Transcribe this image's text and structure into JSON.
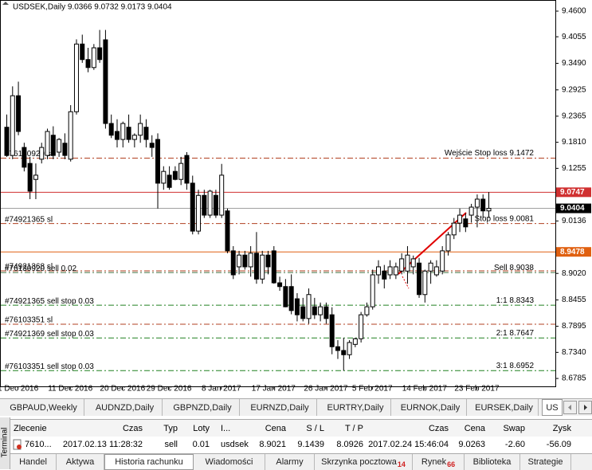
{
  "chart_data": {
    "type": "candlestick",
    "title": "USDSEK,Daily 9.0366 9.0732 9.0173 9.0404",
    "ylim": [
      8.6617,
      9.4837
    ],
    "yticks": [
      {
        "value": 9.46,
        "label": "9.4600"
      },
      9.4055,
      {
        "value": 9.349,
        "label": "9.3490"
      },
      9.2925,
      9.2365,
      {
        "value": 9.181,
        "label": "9.1810"
      },
      9.1255,
      9.0136,
      {
        "value": 8.902,
        "label": "8.9020"
      },
      8.8455,
      8.7895,
      {
        "value": 8.734,
        "label": "8.7340"
      },
      8.6785
    ],
    "xticks": [
      {
        "value": 2,
        "label": "1 Dec 2016"
      },
      {
        "value": 11,
        "label": "11 Dec 2016"
      },
      {
        "value": 20,
        "label": "20 Dec 2016"
      },
      {
        "value": 28,
        "label": "29 Dec 2016"
      },
      {
        "value": 37,
        "label": "8 Jan 2017"
      },
      {
        "value": 46,
        "label": "17 Jan 2017"
      },
      {
        "value": 55,
        "label": "26 Jan 2017"
      },
      {
        "value": 63,
        "label": "5 Feb 2017"
      },
      {
        "value": 72,
        "label": "14 Feb 2017"
      },
      {
        "value": 81,
        "label": "23 Feb 2017"
      }
    ],
    "up_color": "#ffffff",
    "down_color": "#000000",
    "candles": [
      [
        9.213,
        9.24,
        9.15,
        9.153
      ],
      [
        9.153,
        9.3,
        9.145,
        9.28
      ],
      [
        9.28,
        9.31,
        9.196,
        9.204
      ],
      [
        9.17,
        9.18,
        9.119,
        9.128
      ],
      [
        9.136,
        9.15,
        9.06,
        9.077
      ],
      [
        9.102,
        9.136,
        9.06,
        9.111
      ],
      [
        9.145,
        9.18,
        9.136,
        9.17
      ],
      [
        9.153,
        9.21,
        9.145,
        9.204
      ],
      [
        9.196,
        9.215,
        9.145,
        9.153
      ],
      [
        9.16,
        9.19,
        9.15,
        9.187
      ],
      [
        9.179,
        9.2,
        9.145,
        9.153
      ],
      [
        9.145,
        9.26,
        9.14,
        9.246
      ],
      [
        9.246,
        9.4,
        9.24,
        9.39
      ],
      [
        9.39,
        9.41,
        9.35,
        9.357
      ],
      [
        9.357,
        9.382,
        9.33,
        9.34
      ],
      [
        9.34,
        9.39,
        9.335,
        9.382
      ],
      [
        9.382,
        9.42,
        9.35,
        9.357
      ],
      [
        9.399,
        9.42,
        9.21,
        9.221
      ],
      [
        9.221,
        9.24,
        9.19,
        9.196
      ],
      [
        9.204,
        9.23,
        9.17,
        9.187
      ],
      [
        9.187,
        9.225,
        9.17,
        9.221
      ],
      [
        9.213,
        9.24,
        9.18,
        9.187
      ],
      [
        9.187,
        9.2,
        9.17,
        9.196
      ],
      [
        9.196,
        9.24,
        9.18,
        9.221
      ],
      [
        9.213,
        9.23,
        9.17,
        9.187
      ],
      [
        9.179,
        9.196,
        9.15,
        9.17
      ],
      [
        9.187,
        9.2,
        9.04,
        9.094
      ],
      [
        9.094,
        9.13,
        9.08,
        9.119
      ],
      [
        9.111,
        9.13,
        9.08,
        9.085
      ],
      [
        9.119,
        9.13,
        9.1,
        9.102
      ],
      [
        9.102,
        9.15,
        9.09,
        9.136
      ],
      [
        9.153,
        9.16,
        9.08,
        9.094
      ],
      [
        9.094,
        9.11,
        8.985,
        8.992
      ],
      [
        8.992,
        9.08,
        8.985,
        9.068
      ],
      [
        9.068,
        9.08,
        9.02,
        9.026
      ],
      [
        9.026,
        9.08,
        9.02,
        9.077
      ],
      [
        9.068,
        9.08,
        9.02,
        9.026
      ],
      [
        9.026,
        9.135,
        9.02,
        9.111
      ],
      [
        9.035,
        9.04,
        8.945,
        8.95
      ],
      [
        8.95,
        8.96,
        8.89,
        8.899
      ],
      [
        8.916,
        8.95,
        8.9,
        8.941
      ],
      [
        8.941,
        8.95,
        8.91,
        8.916
      ],
      [
        8.916,
        8.96,
        8.895,
        8.945
      ],
      [
        8.945,
        8.99,
        8.88,
        8.89
      ],
      [
        8.89,
        8.95,
        8.88,
        8.941
      ],
      [
        8.941,
        8.95,
        8.9,
        8.916
      ],
      [
        8.95,
        8.96,
        8.88,
        8.882
      ],
      [
        8.882,
        8.895,
        8.865,
        8.874
      ],
      [
        8.874,
        8.89,
        8.83,
        8.831
      ],
      [
        8.874,
        8.9,
        8.815,
        8.823
      ],
      [
        8.848,
        8.86,
        8.8,
        8.814
      ],
      [
        8.831,
        8.85,
        8.8,
        8.806
      ],
      [
        8.806,
        8.87,
        8.795,
        8.857
      ],
      [
        8.831,
        8.85,
        8.805,
        8.814
      ],
      [
        8.814,
        8.84,
        8.8,
        8.831
      ],
      [
        8.831,
        8.84,
        8.795,
        8.806
      ],
      [
        8.814,
        8.83,
        8.73,
        8.746
      ],
      [
        8.746,
        8.76,
        8.72,
        8.738
      ],
      [
        8.738,
        8.765,
        8.695,
        8.729
      ],
      [
        8.729,
        8.76,
        8.72,
        8.755
      ],
      [
        8.751,
        8.765,
        8.745,
        8.763
      ],
      [
        8.763,
        8.82,
        8.755,
        8.814
      ],
      [
        8.814,
        8.84,
        8.81,
        8.831
      ],
      [
        8.831,
        8.91,
        8.825,
        8.899
      ],
      [
        8.899,
        8.93,
        8.88,
        8.916
      ],
      [
        8.907,
        8.92,
        8.87,
        8.89
      ],
      [
        8.899,
        8.93,
        8.89,
        8.916
      ],
      [
        8.899,
        8.925,
        8.89,
        8.916
      ],
      [
        8.907,
        8.945,
        8.9,
        8.933
      ],
      [
        8.907,
        8.96,
        8.88,
        8.941
      ],
      [
        8.916,
        8.94,
        8.9,
        8.933
      ],
      [
        8.924,
        8.935,
        8.85,
        8.857
      ],
      [
        8.857,
        8.91,
        8.84,
        8.907
      ],
      [
        8.907,
        8.93,
        8.88,
        8.924
      ],
      [
        8.899,
        8.93,
        8.895,
        8.916
      ],
      [
        8.907,
        8.96,
        8.9,
        8.95
      ],
      [
        8.95,
        8.99,
        8.94,
        8.984
      ],
      [
        8.984,
        9.02,
        8.975,
        9.009
      ],
      [
        9.009,
        9.04,
        8.99,
        9.026
      ],
      [
        9.018,
        9.03,
        8.99,
        9.001
      ],
      [
        9.026,
        9.05,
        9.01,
        9.043
      ],
      [
        9.043,
        9.07,
        9.0,
        9.06
      ],
      [
        9.06,
        9.07,
        9.02,
        9.035
      ],
      [
        9.035,
        9.075,
        9.02,
        9.0404
      ]
    ],
    "price_lines": [
      {
        "value": 9.0747,
        "color": "#d03030"
      },
      {
        "value": 9.0404,
        "color": "#000000",
        "line": "#a0a0a0"
      },
      {
        "value": 8.9478,
        "color": "#e06010"
      }
    ],
    "levels": [
      {
        "value": 9.1472,
        "left": "#76130920 sl",
        "right": "Wejście Stop loss 9.1472",
        "color": "#b04020"
      },
      {
        "value": 9.0081,
        "left": "#74921365 sl",
        "right": "Stop loss 9.0081",
        "color": "#b04020"
      },
      {
        "value": 8.9075,
        "left": "#74921368 sl",
        "color": "#b04020"
      },
      {
        "value": 8.9038,
        "left": "#76130920 sell 0.02",
        "right": "Sell 8.9038",
        "color": "#407040"
      },
      {
        "value": 8.8343,
        "left": "#74921365 sell stop 0.03",
        "right": "1:1 8.8343",
        "color": "#208020"
      },
      {
        "value": 8.7939,
        "left": "#76103351 sl",
        "color": "#b04020"
      },
      {
        "value": 8.7647,
        "left": "#74921369 sell stop 0.03",
        "right": "2:1 8.7647",
        "color": "#208020"
      },
      {
        "value": 8.6952,
        "left": "#76103351 sell stop 0.03",
        "right": "3:1 8.6952",
        "color": "#208020"
      }
    ]
  },
  "chart_tabs": {
    "items": [
      "GBPAUD,Weekly",
      "AUDNZD,Daily",
      "GBPNZD,Daily",
      "EURNZD,Daily",
      "EURTRY,Daily",
      "EURNOK,Daily",
      "EURSEK,Daily",
      "US"
    ],
    "active": 7
  },
  "table": {
    "header": [
      "Zlecenie",
      "Czas",
      "Typ",
      "Loty",
      "I...",
      "Cena",
      "S / L",
      "T / P",
      "Czas",
      "Cena",
      "Swap",
      "Zysk"
    ],
    "rows": [
      [
        "7610...",
        "2017.02.13 11:28:32",
        "sell",
        "0.01",
        "usdsek",
        "8.9021",
        "9.1439",
        "8.0926",
        "2017.02.24 15:46:04",
        "9.0263",
        "-2.60",
        "-56.09"
      ]
    ]
  },
  "terminal_tabs": {
    "items": [
      {
        "label": "Handel"
      },
      {
        "label": "Aktywa"
      },
      {
        "label": "Historia rachunku"
      },
      {
        "label": "Wiadomości"
      },
      {
        "label": "Alarmy"
      },
      {
        "label": "Skrzynka pocztowa",
        "badge": "14"
      },
      {
        "label": "Rynek",
        "badge": "66"
      },
      {
        "label": "Biblioteka"
      },
      {
        "label": "Strategie"
      }
    ],
    "active": 2
  },
  "side_label": "Terminal"
}
